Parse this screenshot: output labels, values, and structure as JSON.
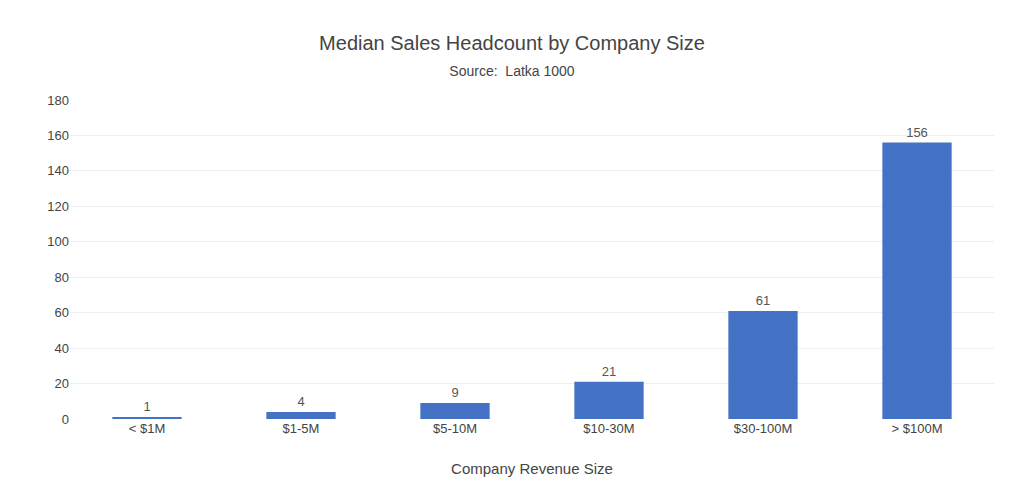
{
  "chart_data": {
    "type": "bar",
    "title": "Median Sales Headcount by Company Size",
    "subtitle": "Source:  Latka 1000",
    "xlabel": "Company Revenue Size",
    "categories": [
      "< $1M",
      "$1-5M",
      "$5-10M",
      "$10-30M",
      "$30-100M",
      "> $100M"
    ],
    "values": [
      1,
      4,
      9,
      21,
      61,
      156
    ],
    "color": "#4472C4",
    "ylim": [
      0,
      180
    ],
    "yticks": [
      0,
      20,
      40,
      60,
      80,
      100,
      120,
      140,
      160,
      180
    ],
    "grid": true,
    "data_labels": true
  }
}
